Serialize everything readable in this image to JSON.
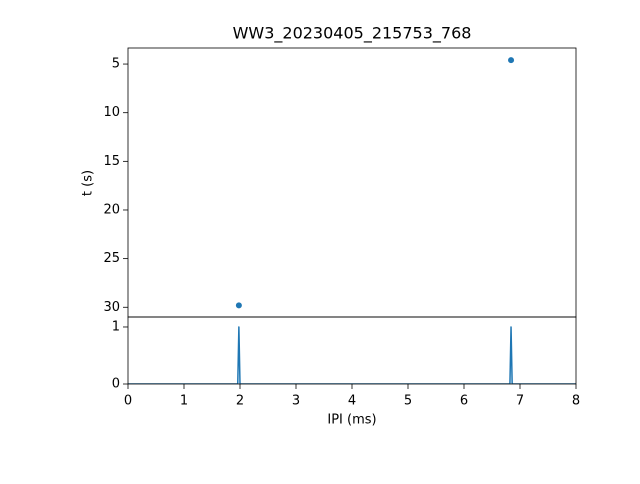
{
  "chart_data": [
    {
      "type": "scatter",
      "title": "WW3_20230405_215753_768",
      "y_label": "t (s)",
      "x": [
        6.84,
        1.98
      ],
      "values": [
        4.6,
        29.8
      ],
      "color": "#1f77b4",
      "xlim": [
        0,
        8
      ],
      "ylim": [
        31.0,
        3.35
      ],
      "yticks": [
        5,
        10,
        15,
        20,
        25,
        30
      ]
    },
    {
      "type": "line",
      "x_label": "IPI (ms)",
      "x": [
        0,
        1.96,
        1.98,
        2.0,
        6.82,
        6.84,
        6.86,
        8
      ],
      "values": [
        0,
        0,
        1,
        0,
        0,
        1,
        0,
        0
      ],
      "color": "#1f77b4",
      "xlim": [
        0,
        8
      ],
      "ylim": [
        0,
        1.175
      ],
      "xticks": [
        0,
        1,
        2,
        3,
        4,
        5,
        6,
        7,
        8
      ],
      "yticks": [
        0,
        1
      ]
    }
  ]
}
